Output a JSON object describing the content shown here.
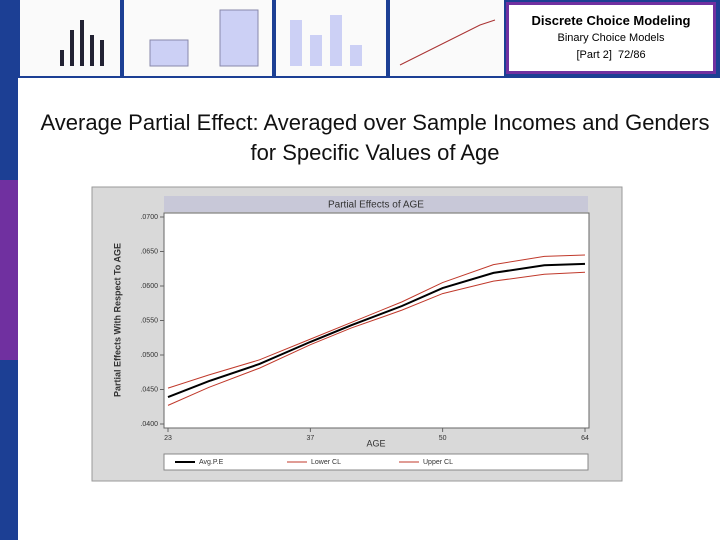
{
  "header": {
    "title": "Discrete Choice Modeling",
    "subtitle": "Binary Choice Models",
    "part": "[Part 2]",
    "page": "72/86"
  },
  "slide_title": "Average Partial Effect: Averaged over Sample Incomes and Genders for Specific Values of Age",
  "chart_data": {
    "type": "line",
    "title": "Partial Effects of AGE",
    "x_label": "AGE",
    "y_label": "Partial Effects With Respect To AGE",
    "x": [
      23,
      27,
      32,
      37,
      41,
      46,
      50,
      55,
      60,
      64
    ],
    "series": [
      {
        "name": "Avg.P.E",
        "color": "#000000",
        "values": [
          0.0439,
          0.0462,
          0.0487,
          0.0519,
          0.0543,
          0.0571,
          0.0597,
          0.0619,
          0.063,
          0.0632
        ]
      },
      {
        "name": "Lower CL",
        "color": "#c0392b",
        "values": [
          0.0427,
          0.0453,
          0.0481,
          0.0515,
          0.0539,
          0.0565,
          0.0589,
          0.0607,
          0.0617,
          0.062
        ]
      },
      {
        "name": "Upper CL",
        "color": "#c0392b",
        "values": [
          0.0452,
          0.0471,
          0.0493,
          0.0523,
          0.0547,
          0.0577,
          0.0605,
          0.0631,
          0.0643,
          0.0645
        ]
      }
    ],
    "xlim": [
      23,
      64
    ],
    "xticks": [
      23,
      37,
      50,
      64
    ],
    "ylim": [
      0.04,
      0.07
    ],
    "yticks": [
      {
        "value": 0.04,
        "label": ".0400"
      },
      {
        "value": 0.045,
        "label": ".0450"
      },
      {
        "value": 0.05,
        "label": ".0500"
      },
      {
        "value": 0.055,
        "label": ".0550"
      },
      {
        "value": 0.06,
        "label": ".0600"
      },
      {
        "value": 0.065,
        "label": ".0650"
      },
      {
        "value": 0.07,
        "label": ".0700"
      }
    ],
    "legend": "bottom"
  }
}
